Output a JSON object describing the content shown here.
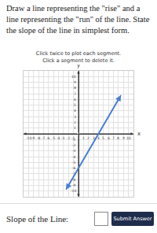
{
  "prompt": "Draw a line representing the \"rise\" and a line representing the \"run\" of the line. State the slope of the line in simplest form.",
  "hints": [
    "Click twice to plot each segment.",
    "Click a segment to delete it."
  ],
  "chart_data": {
    "type": "line",
    "x": [
      -2.5,
      8.5
    ],
    "values": [
      -9.75,
      6.75
    ],
    "color": "#4a7fd4",
    "xlabel": "x",
    "ylabel": "y",
    "xlim": [
      -11,
      11
    ],
    "ylim": [
      -11,
      11
    ],
    "xticks": [
      -10,
      -9,
      -8,
      -7,
      -6,
      -5,
      -4,
      -3,
      -2,
      -1,
      1,
      2,
      3,
      4,
      5,
      6,
      7,
      8,
      9,
      10
    ],
    "yticks": [
      -10,
      -9,
      -8,
      -7,
      -6,
      -5,
      -4,
      -3,
      -2,
      -1,
      1,
      2,
      3,
      4,
      5,
      6,
      7,
      8,
      9,
      10
    ],
    "grid": true,
    "marker": "arrow",
    "line_style": "solid"
  },
  "answer": {
    "label": "Slope of the Line:",
    "button": "Submit Answer"
  }
}
